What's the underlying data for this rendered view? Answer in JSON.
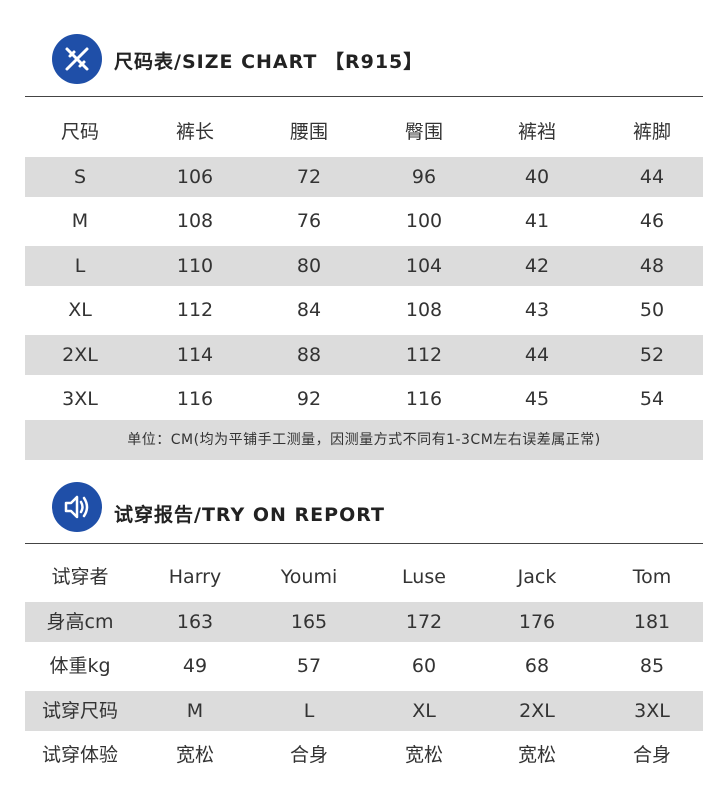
{
  "size_chart": {
    "icon": "ruler-pencil-icon",
    "title": "尺码表/SIZE CHART 【R915】",
    "headers": [
      "尺码",
      "裤长",
      "腰围",
      "臀围",
      "裤裆",
      "裤脚"
    ],
    "rows": [
      [
        "S",
        "106",
        "72",
        "96",
        "40",
        "44"
      ],
      [
        "M",
        "108",
        "76",
        "100",
        "41",
        "46"
      ],
      [
        "L",
        "110",
        "80",
        "104",
        "42",
        "48"
      ],
      [
        "XL",
        "112",
        "84",
        "108",
        "43",
        "50"
      ],
      [
        "2XL",
        "114",
        "88",
        "112",
        "44",
        "52"
      ],
      [
        "3XL",
        "116",
        "92",
        "116",
        "45",
        "54"
      ]
    ],
    "note": "单位：CM(均为平铺手工测量，因测量方式不同有1-3CM左右误差属正常)"
  },
  "try_on": {
    "icon": "speaker-icon",
    "title": "试穿报告/TRY ON REPORT",
    "headers": [
      "试穿者",
      "Harry",
      "Youmi",
      "Luse",
      "Jack",
      "Tom"
    ],
    "rows": [
      [
        "身高cm",
        "163",
        "165",
        "172",
        "176",
        "181"
      ],
      [
        "体重kg",
        "49",
        "57",
        "60",
        "68",
        "85"
      ],
      [
        "试穿尺码",
        "M",
        "L",
        "XL",
        "2XL",
        "3XL"
      ],
      [
        "试穿体验",
        "宽松",
        "合身",
        "宽松",
        "宽松",
        "合身"
      ]
    ]
  },
  "colors": {
    "accent": "#1f4fa8",
    "row_shade": "#dcdcdc",
    "text": "#333333"
  }
}
